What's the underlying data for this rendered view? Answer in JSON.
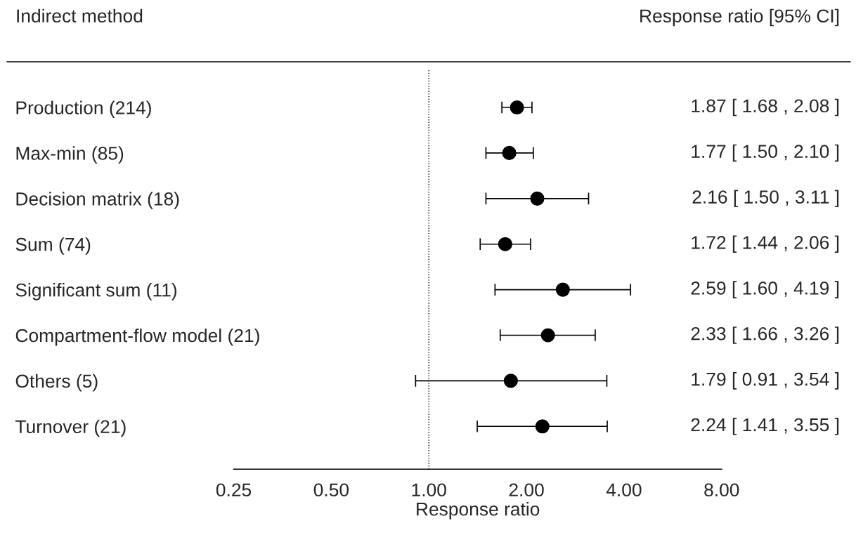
{
  "chart_data": {
    "type": "scatter",
    "orientation": "horizontal",
    "title": "Indirect method",
    "xlabel": "Response ratio",
    "annotations": [
      "Response ratio [95% CI]"
    ],
    "categories": [
      "Production (214)",
      "Max-min (85)",
      "Decision matrix (18)",
      "Sum (74)",
      "Significant sum (11)",
      "Compartment-flow model (21)",
      "Others (5)",
      "Turnover (21)"
    ],
    "values": [
      1.87,
      1.77,
      2.16,
      1.72,
      2.59,
      2.33,
      1.79,
      2.24
    ],
    "errors": [
      [
        1.68,
        2.08
      ],
      [
        1.5,
        2.1
      ],
      [
        1.5,
        3.11
      ],
      [
        1.44,
        2.06
      ],
      [
        1.6,
        4.19
      ],
      [
        1.66,
        3.26
      ],
      [
        0.91,
        3.54
      ],
      [
        1.41,
        3.55
      ]
    ],
    "value_labels": [
      "1.87 [ 1.68 , 2.08 ]",
      "1.77 [ 1.50 , 2.10 ]",
      "2.16 [ 1.50 , 3.11 ]",
      "1.72 [ 1.44 , 2.06 ]",
      "2.59 [ 1.60 , 4.19 ]",
      "2.33 [ 1.66 , 3.26 ]",
      "1.79 [ 0.91 , 3.54 ]",
      "2.24 [ 1.41 , 3.55 ]"
    ],
    "color": "#000000",
    "marker": "circle",
    "log": "x",
    "grid": false,
    "xlim": [
      0.25,
      8
    ],
    "xticks": [
      {
        "value": 0.25,
        "label": "0.25"
      },
      {
        "value": 0.5,
        "label": "0.50"
      },
      {
        "value": 1,
        "label": "1.00"
      },
      {
        "value": 2,
        "label": "2.00"
      },
      {
        "value": 4,
        "label": "4.00"
      },
      {
        "value": 8,
        "label": "8.00"
      }
    ],
    "ref_lines": [
      {
        "axis": "x",
        "value": 1,
        "line_style": "dotted",
        "color": "#000000"
      }
    ]
  }
}
